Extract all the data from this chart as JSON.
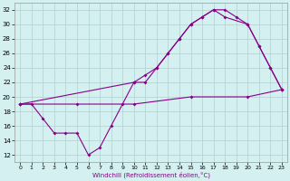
{
  "xlabel": "Windchill (Refroidissement éolien,°C)",
  "background_color": "#d4f0f0",
  "grid_color": "#b0d0d0",
  "line_color": "#880088",
  "xlim": [
    -0.5,
    23.5
  ],
  "ylim": [
    11,
    33
  ],
  "xticks": [
    0,
    1,
    2,
    3,
    4,
    5,
    6,
    7,
    8,
    9,
    10,
    11,
    12,
    13,
    14,
    15,
    16,
    17,
    18,
    19,
    20,
    21,
    22,
    23
  ],
  "yticks": [
    12,
    14,
    16,
    18,
    20,
    22,
    24,
    26,
    28,
    30,
    32
  ],
  "series1": [
    [
      0,
      19
    ],
    [
      1,
      19
    ],
    [
      2,
      17
    ],
    [
      3,
      15
    ],
    [
      4,
      15
    ],
    [
      5,
      15
    ],
    [
      6,
      12
    ],
    [
      7,
      13
    ],
    [
      8,
      16
    ],
    [
      9,
      19
    ],
    [
      10,
      22
    ],
    [
      11,
      22
    ],
    [
      12,
      24
    ],
    [
      13,
      26
    ],
    [
      14,
      28
    ],
    [
      15,
      30
    ],
    [
      16,
      31
    ],
    [
      17,
      32
    ],
    [
      18,
      32
    ],
    [
      19,
      31
    ],
    [
      20,
      30
    ],
    [
      21,
      27
    ],
    [
      22,
      24
    ],
    [
      23,
      21
    ]
  ],
  "series2": [
    [
      0,
      19
    ],
    [
      10,
      22
    ],
    [
      11,
      23
    ],
    [
      12,
      24
    ],
    [
      13,
      26
    ],
    [
      14,
      28
    ],
    [
      15,
      30
    ],
    [
      16,
      31
    ],
    [
      17,
      32
    ],
    [
      18,
      31
    ],
    [
      20,
      30
    ],
    [
      21,
      27
    ],
    [
      22,
      24
    ],
    [
      23,
      21
    ]
  ],
  "series3": [
    [
      0,
      19
    ],
    [
      5,
      19
    ],
    [
      10,
      19
    ],
    [
      15,
      20
    ],
    [
      20,
      20
    ],
    [
      23,
      21
    ]
  ]
}
